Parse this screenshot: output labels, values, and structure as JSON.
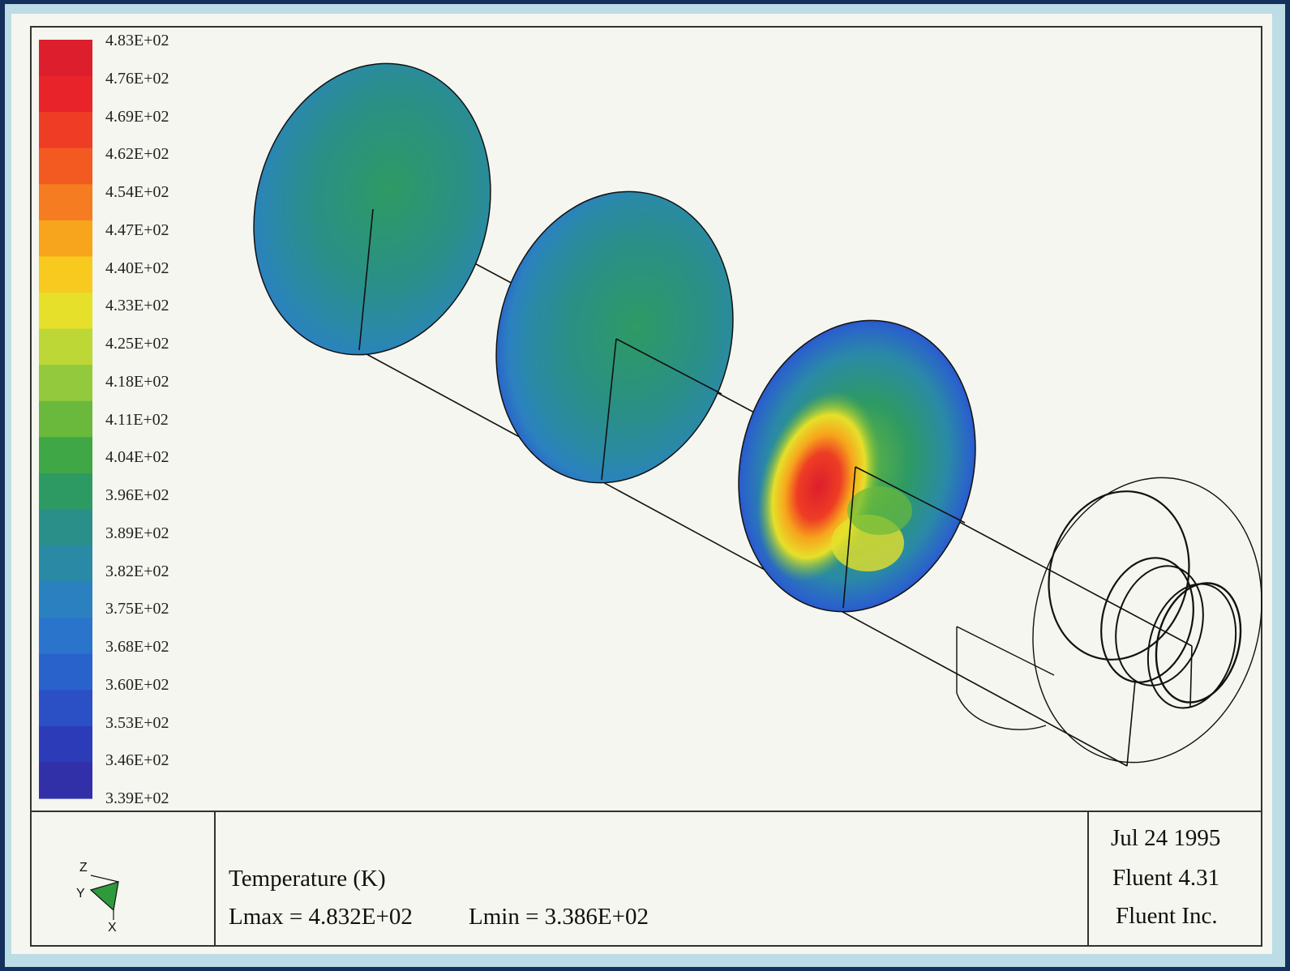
{
  "legend": {
    "labels": [
      "4.83E+02",
      "4.76E+02",
      "4.69E+02",
      "4.62E+02",
      "4.54E+02",
      "4.47E+02",
      "4.40E+02",
      "4.33E+02",
      "4.25E+02",
      "4.18E+02",
      "4.11E+02",
      "4.04E+02",
      "3.96E+02",
      "3.89E+02",
      "3.82E+02",
      "3.75E+02",
      "3.68E+02",
      "3.60E+02",
      "3.53E+02",
      "3.46E+02",
      "3.39E+02"
    ],
    "colors": [
      "#dc1e2d",
      "#e8242a",
      "#ee3d24",
      "#f25a22",
      "#f57c20",
      "#f7a51c",
      "#f8c91e",
      "#e6e02a",
      "#bcd736",
      "#93c93c",
      "#6ab93c",
      "#3fa746",
      "#2e9a63",
      "#2a8f88",
      "#2a8aa6",
      "#2b81c0",
      "#2a74cc",
      "#2a62cc",
      "#2b4fc4",
      "#2c3cb8",
      "#3230a8"
    ]
  },
  "plot": {
    "quantity": "Temperature (K)",
    "lmax": "Lmax = 4.832E+02",
    "lmin": "Lmin = 3.386E+02"
  },
  "info": {
    "date": "Jul 24 1995",
    "version": "Fluent 4.31",
    "company": "Fluent Inc."
  },
  "axes": {
    "z": "Z",
    "y": "Y",
    "x": "X"
  }
}
